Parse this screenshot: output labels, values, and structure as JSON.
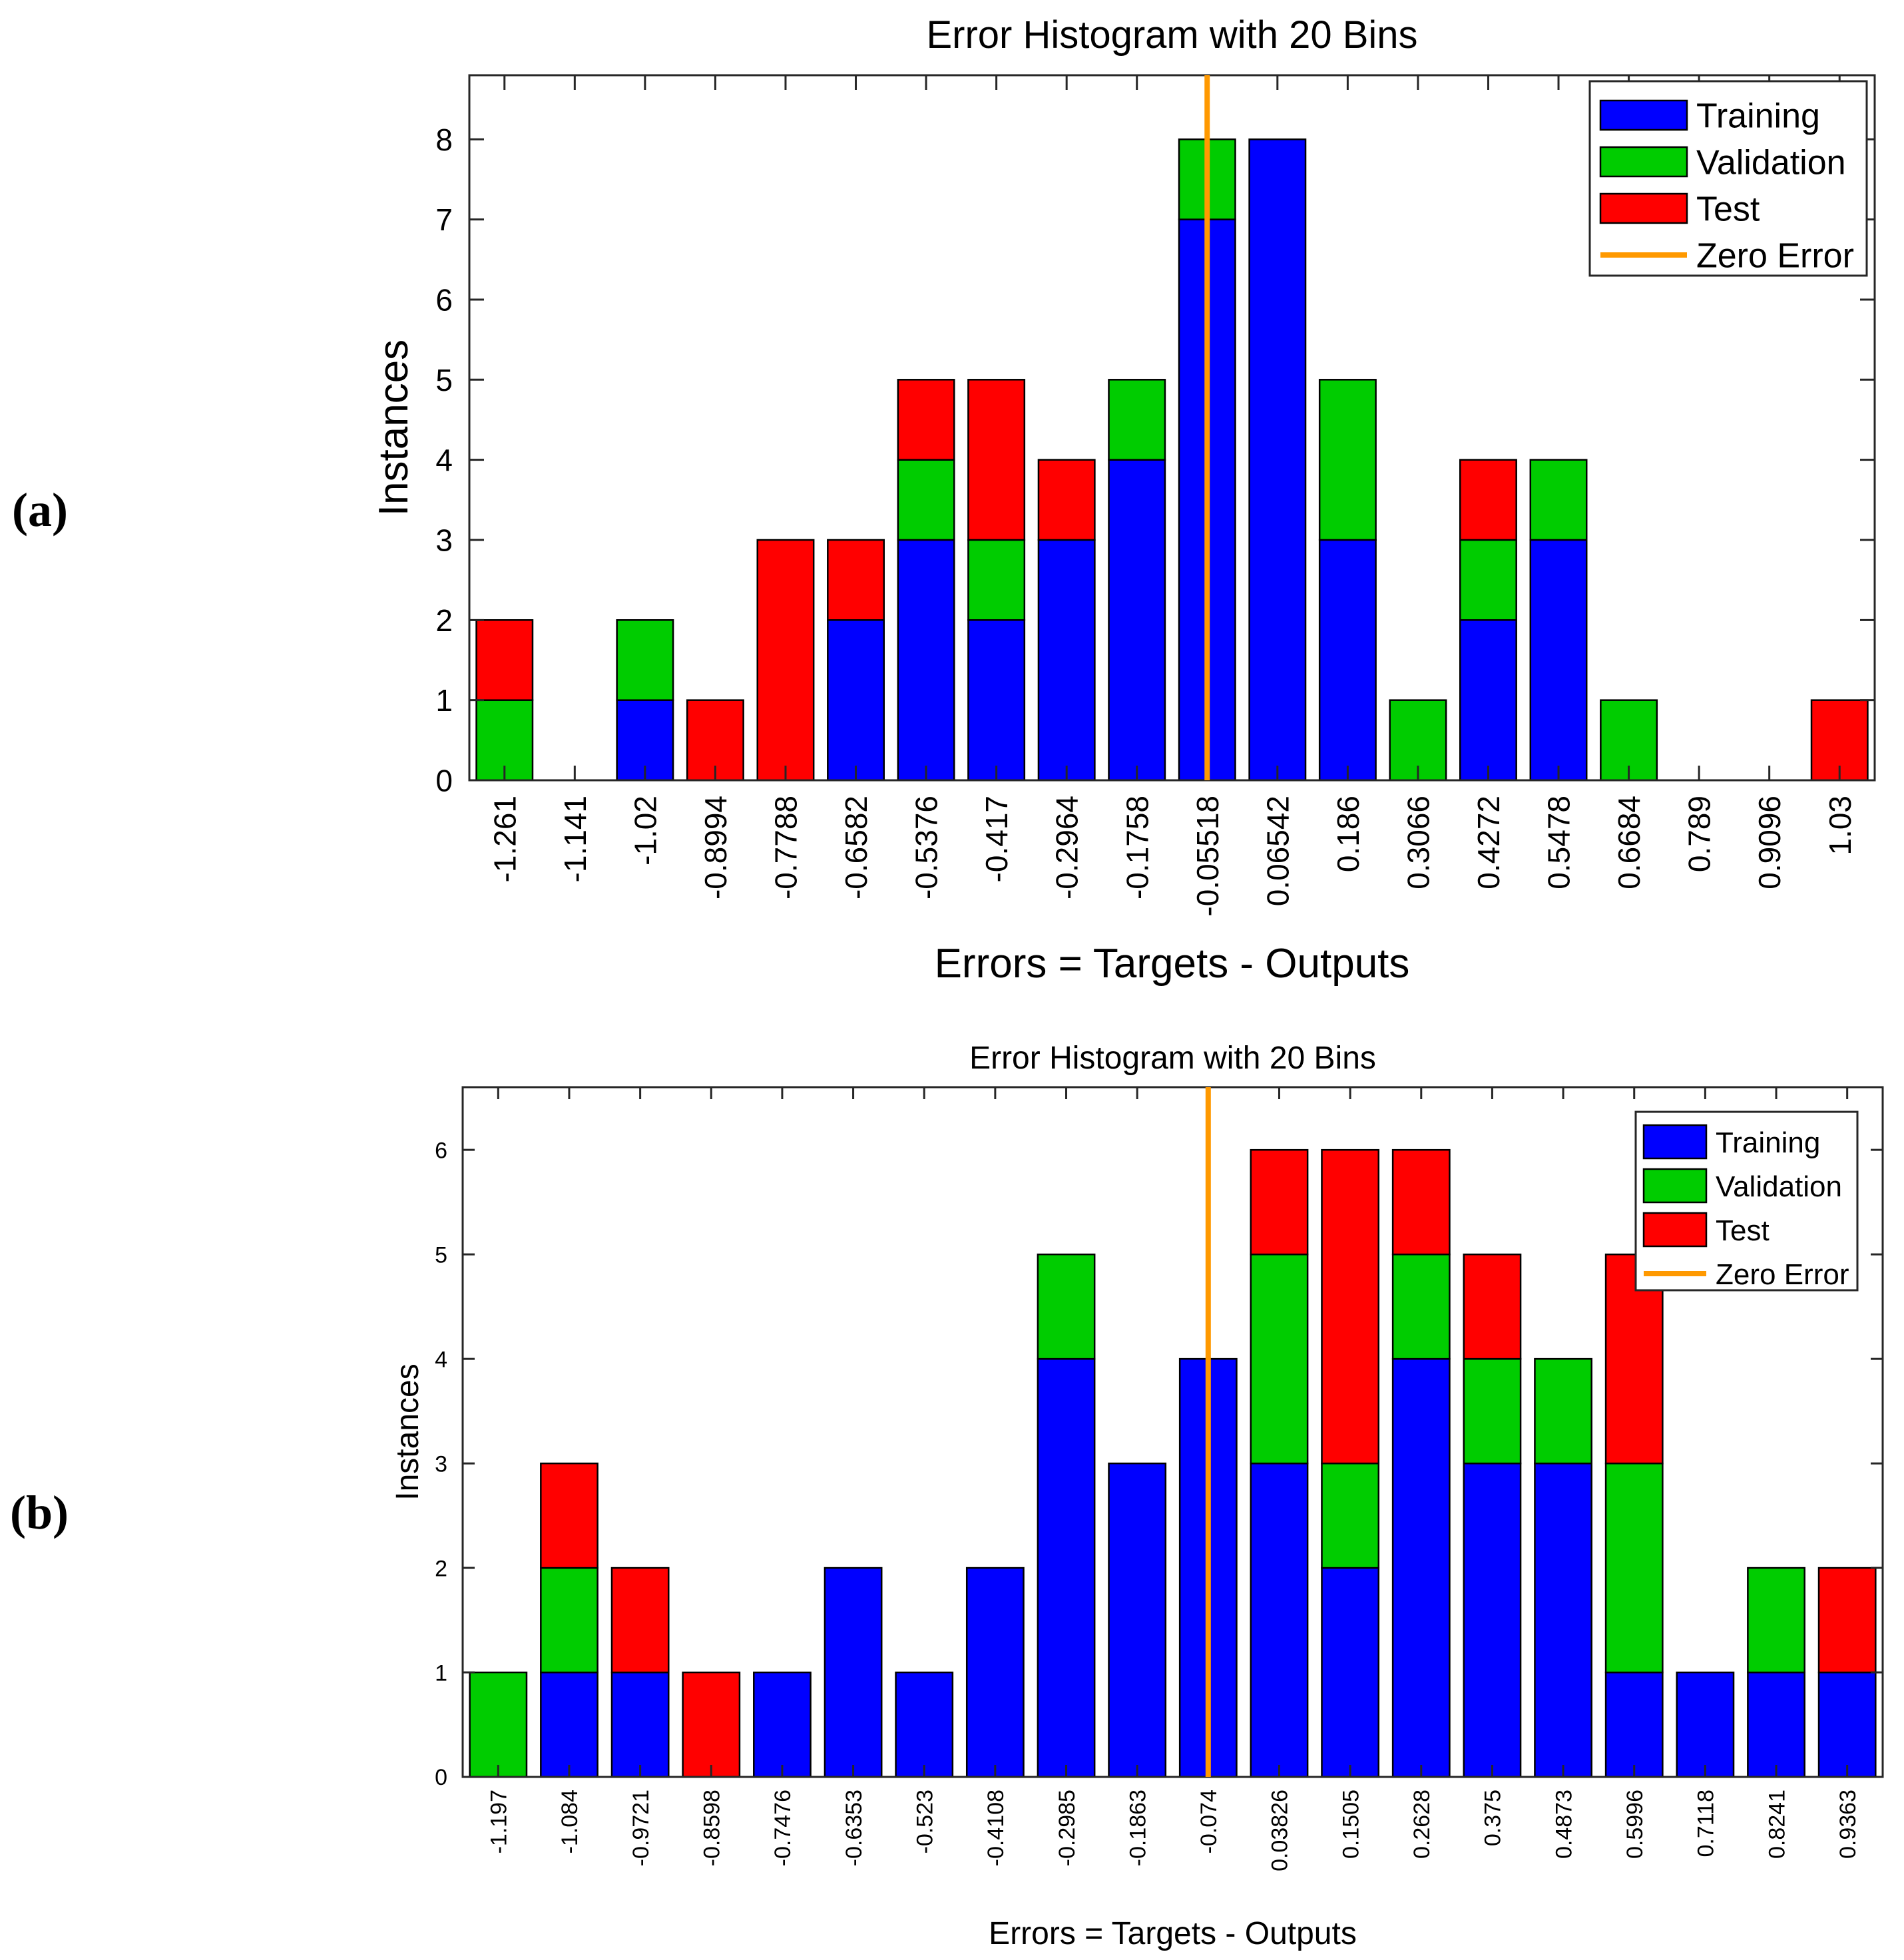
{
  "panel_labels": [
    "(a)",
    "(b)"
  ],
  "colors": {
    "training": "#0000ff",
    "validation": "#00cc00",
    "test": "#ff0000",
    "zero_error": "#ff9900",
    "bar_edge": "#000000"
  },
  "chart_data": [
    {
      "type": "bar",
      "stacked": true,
      "title": "Error Histogram with 20 Bins",
      "xlabel": "Errors = Targets - Outputs",
      "ylabel": "Instances",
      "ylim": [
        0,
        8.8
      ],
      "yticks": [
        0,
        1,
        2,
        3,
        4,
        5,
        6,
        7,
        8
      ],
      "categories": [
        "-1.261",
        "-1.141",
        "-1.02",
        "-0.8994",
        "-0.7788",
        "-0.6582",
        "-0.5376",
        "-0.417",
        "-0.2964",
        "-0.1758",
        "-0.05518",
        "0.06542",
        "0.186",
        "0.3066",
        "0.4272",
        "0.5478",
        "0.6684",
        "0.789",
        "0.9096",
        "1.03"
      ],
      "series": [
        {
          "name": "Training",
          "values": [
            0,
            0,
            1,
            0,
            0,
            2,
            3,
            2,
            3,
            4,
            7,
            8,
            3,
            0,
            2,
            3,
            0,
            0,
            0,
            0
          ]
        },
        {
          "name": "Validation",
          "values": [
            1,
            0,
            1,
            0,
            0,
            0,
            1,
            1,
            0,
            1,
            1,
            0,
            2,
            1,
            1,
            1,
            1,
            0,
            0,
            0
          ]
        },
        {
          "name": "Test",
          "values": [
            1,
            0,
            0,
            1,
            3,
            1,
            1,
            2,
            1,
            0,
            0,
            0,
            0,
            0,
            1,
            0,
            0,
            0,
            0,
            1
          ]
        }
      ],
      "zero_error": {
        "name": "Zero Error",
        "position_bins": 10.5
      },
      "legend": [
        "Training",
        "Validation",
        "Test",
        "Zero Error"
      ],
      "legend_position": "top-right"
    },
    {
      "type": "bar",
      "stacked": true,
      "title": "Error Histogram with 20 Bins",
      "xlabel": "Errors = Targets - Outputs",
      "ylabel": "Instances",
      "ylim": [
        0,
        6.6
      ],
      "yticks": [
        0,
        1,
        2,
        3,
        4,
        5,
        6
      ],
      "categories": [
        "-1.197",
        "-1.084",
        "-0.9721",
        "-0.8598",
        "-0.7476",
        "-0.6353",
        "-0.523",
        "-0.4108",
        "-0.2985",
        "-0.1863",
        "-0.074",
        "0.03826",
        "0.1505",
        "0.2628",
        "0.375",
        "0.4873",
        "0.5996",
        "0.7118",
        "0.8241",
        "0.9363"
      ],
      "series": [
        {
          "name": "Training",
          "values": [
            0,
            1,
            1,
            0,
            1,
            2,
            1,
            2,
            4,
            3,
            4,
            3,
            2,
            4,
            3,
            3,
            1,
            1,
            1,
            1
          ]
        },
        {
          "name": "Validation",
          "values": [
            1,
            1,
            0,
            0,
            0,
            0,
            0,
            0,
            1,
            0,
            0,
            2,
            1,
            1,
            1,
            1,
            2,
            0,
            1,
            0
          ]
        },
        {
          "name": "Test",
          "values": [
            0,
            1,
            1,
            1,
            0,
            0,
            0,
            0,
            0,
            0,
            0,
            1,
            3,
            1,
            1,
            0,
            2,
            0,
            0,
            1
          ]
        }
      ],
      "zero_error": {
        "name": "Zero Error",
        "position_bins": 10.5
      },
      "legend": [
        "Training",
        "Validation",
        "Test",
        "Zero Error"
      ],
      "legend_position": "top-right"
    }
  ]
}
